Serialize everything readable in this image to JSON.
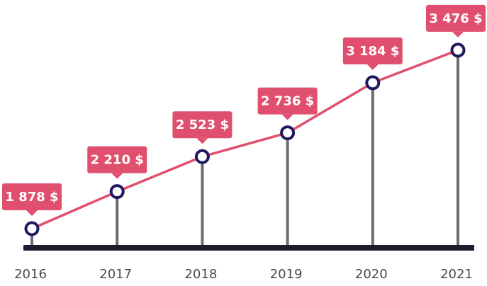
{
  "chart_data": {
    "type": "line",
    "categories": [
      "2016",
      "2017",
      "2018",
      "2019",
      "2020",
      "2021"
    ],
    "values": [
      1878,
      2210,
      2523,
      2736,
      3184,
      3476
    ],
    "data_labels": [
      "1 878 $",
      "2 210 $",
      "2 523 $",
      "2 736 $",
      "3 184 $",
      "3 476 $"
    ],
    "title": "",
    "xlabel": "",
    "ylabel": "",
    "ylim": [
      1500,
      3600
    ],
    "grid": false,
    "legend": "none",
    "colors": {
      "line": "#e0506e",
      "callout": "#e0506e",
      "marker_stroke": "#1f1a5e",
      "marker_fill": "#ffffff",
      "stem": "#6b6b6b",
      "baseline": "#1c1c2e",
      "tick_text": "#4a4a4a",
      "label_text": "#ffffff"
    }
  }
}
